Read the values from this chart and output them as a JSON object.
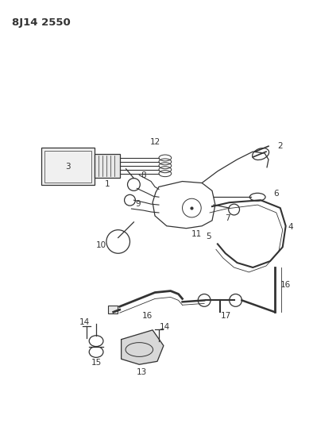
{
  "title": "8J14 2550",
  "bg_color": "#ffffff",
  "line_color": "#333333",
  "title_fontsize": 9.5,
  "label_fontsize": 7.5,
  "figsize": [
    3.94,
    5.33
  ],
  "dpi": 100
}
